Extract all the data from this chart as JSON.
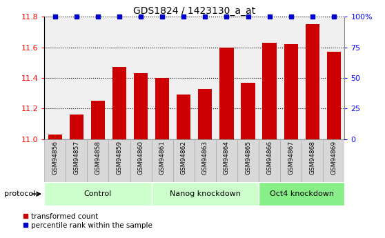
{
  "title": "GDS1824 / 1423130_a_at",
  "samples": [
    "GSM94856",
    "GSM94857",
    "GSM94858",
    "GSM94859",
    "GSM94860",
    "GSM94861",
    "GSM94862",
    "GSM94863",
    "GSM94864",
    "GSM94865",
    "GSM94866",
    "GSM94867",
    "GSM94868",
    "GSM94869"
  ],
  "bar_values": [
    11.03,
    11.16,
    11.25,
    11.47,
    11.43,
    11.4,
    11.29,
    11.33,
    11.6,
    11.37,
    11.63,
    11.62,
    11.75,
    11.57
  ],
  "percentile_values": [
    100,
    100,
    100,
    100,
    100,
    100,
    100,
    100,
    100,
    100,
    100,
    100,
    100,
    100
  ],
  "bar_color": "#cc0000",
  "percentile_color": "#0000cc",
  "ylim": [
    11.0,
    11.8
  ],
  "yticks": [
    11.0,
    11.2,
    11.4,
    11.6,
    11.8
  ],
  "right_yticks": [
    0,
    25,
    50,
    75,
    100
  ],
  "right_ytick_labels": [
    "0",
    "25",
    "50",
    "75",
    "100%"
  ],
  "group_labels": [
    "Control",
    "Nanog knockdown",
    "Oct4 knockdown"
  ],
  "group_ranges": [
    [
      0,
      4
    ],
    [
      5,
      9
    ],
    [
      10,
      13
    ]
  ],
  "group_colors": [
    "#ccffcc",
    "#ccffcc",
    "#88ee88"
  ],
  "sample_bg_color": "#d8d8d8",
  "sample_border_color": "#aaaaaa",
  "protocol_label": "protocol",
  "legend_items": [
    {
      "label": "transformed count",
      "color": "#cc0000"
    },
    {
      "label": "percentile rank within the sample",
      "color": "#0000cc"
    }
  ],
  "title_fontsize": 10,
  "bar_width": 0.65,
  "plot_bg_color": "#f0f0f0",
  "white": "#ffffff"
}
